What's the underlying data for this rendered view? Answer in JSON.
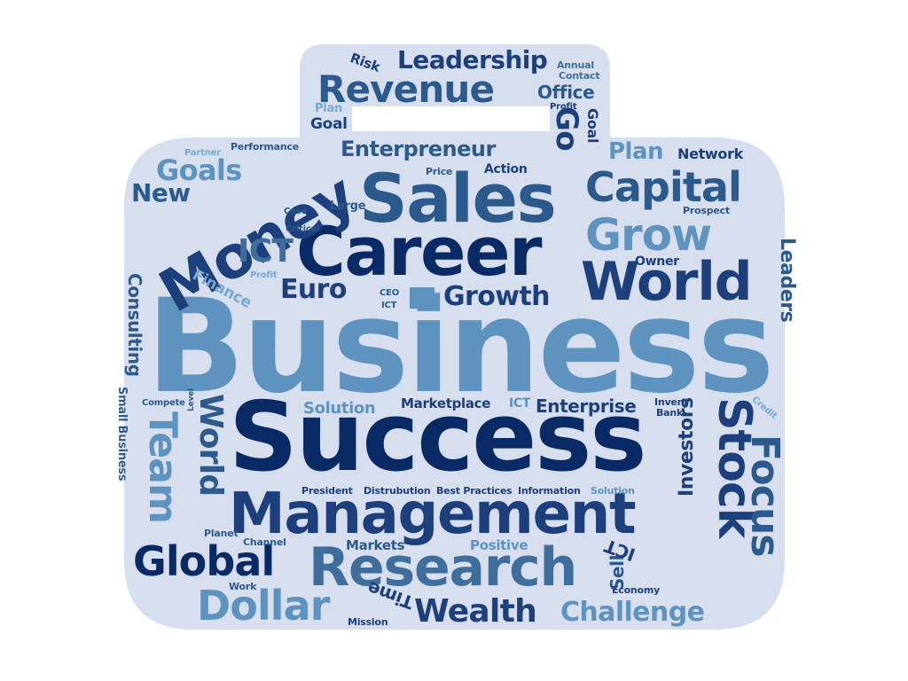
{
  "image": {
    "description_free": true,
    "palette": {
      "bag_fill": "#d7dfee",
      "background": "#ffffff",
      "navy": "#0a2a66",
      "dark_blue": "#1d3f7c",
      "mid_blue": "#2c5a8c",
      "steel_blue": "#3f6e9c",
      "light_blue": "#5f93bf",
      "pale_blue": "#78a8cf"
    },
    "shape_icon": "briefcase-icon",
    "words": [
      "Business",
      "Success",
      "Management",
      "Research",
      "Career",
      "Sales",
      "Money",
      "World",
      "Capital",
      "Grow",
      "Revenue",
      "Leadership",
      "Enterpreneur",
      "Goals",
      "New",
      "Go",
      "Plan",
      "Network",
      "Euro",
      "Growth",
      "Global",
      "Dollar",
      "Wealth",
      "Challenge",
      "Stock",
      "Focus",
      "Team",
      "World",
      "Investors",
      "Leaders",
      "Consulting",
      "Small Business",
      "Finance",
      "ICT",
      "Solution",
      "Marketplace",
      "ICT",
      "Enterprise",
      "Invent",
      "Bank",
      "Credit",
      "Compete",
      "Level",
      "President",
      "Distrubution",
      "Best Practices",
      "Information",
      "Solution",
      "Planet",
      "Channel",
      "Markets",
      "Positive",
      "Work",
      "Mission",
      "Time",
      "Sell",
      "ICT",
      "Economy",
      "Risk",
      "Annual",
      "Contact",
      "Office",
      "Profit",
      "Goal",
      "Goal",
      "Plan",
      "Partner",
      "Performance",
      "Price",
      "Action",
      "Large",
      "Case",
      "Critical",
      "Prospect",
      "Owner",
      "Profit",
      "CEO",
      "ICT"
    ]
  }
}
